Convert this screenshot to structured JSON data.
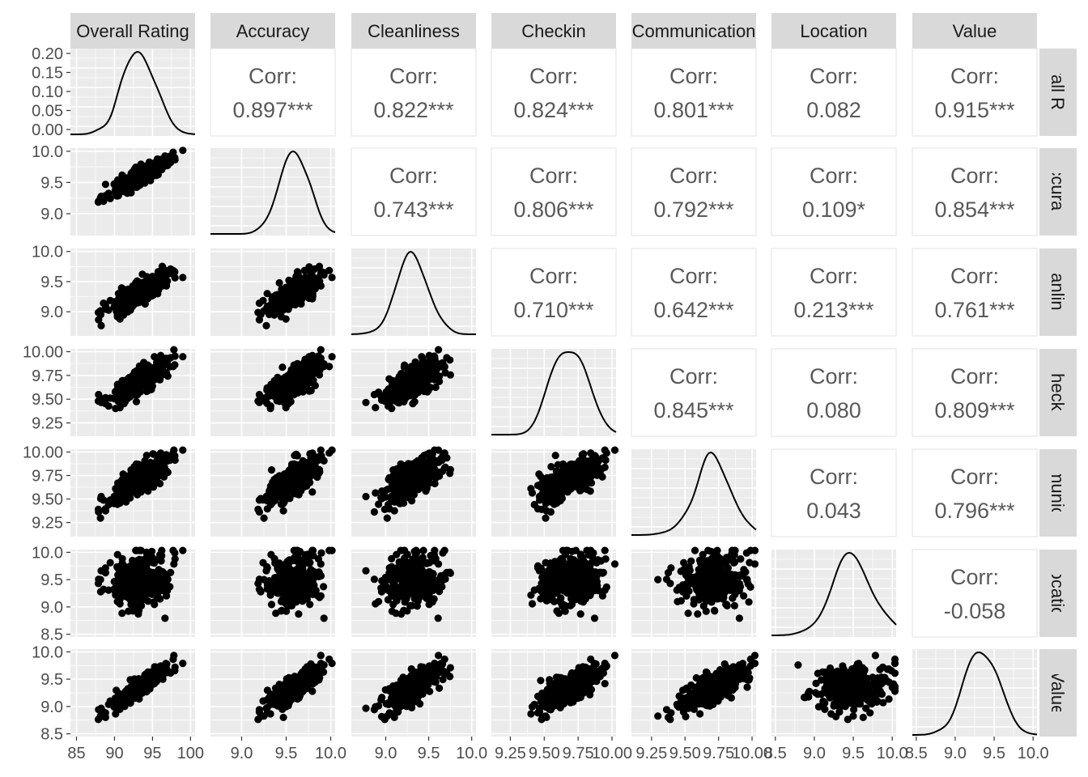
{
  "chart_data": {
    "type": "scatter",
    "variables": [
      "Overall Rating",
      "Accuracy",
      "Cleanliness",
      "Checkin",
      "Communication",
      "Location",
      "Value"
    ],
    "corr_label": "Corr:",
    "correlations": {
      "Accuracy|Overall Rating": "0.897***",
      "Cleanliness|Overall Rating": "0.822***",
      "Checkin|Overall Rating": "0.824***",
      "Communication|Overall Rating": "0.801***",
      "Location|Overall Rating": "0.082",
      "Value|Overall Rating": "0.915***",
      "Cleanliness|Accuracy": "0.743***",
      "Checkin|Accuracy": "0.806***",
      "Communication|Accuracy": "0.792***",
      "Location|Accuracy": "0.109*",
      "Value|Accuracy": "0.854***",
      "Checkin|Cleanliness": "0.710***",
      "Communication|Cleanliness": "0.642***",
      "Location|Cleanliness": "0.213***",
      "Value|Cleanliness": "0.761***",
      "Communication|Checkin": "0.845***",
      "Location|Checkin": "0.080",
      "Value|Checkin": "0.809***",
      "Location|Communication": "0.043",
      "Value|Communication": "0.796***",
      "Value|Location": "-0.058"
    },
    "axes": {
      "Overall Rating": {
        "range": [
          84.2,
          100.6
        ],
        "ticks": [
          "85",
          "90",
          "95",
          "100"
        ],
        "tick_values": [
          85,
          90,
          95,
          100
        ],
        "mean": 93.1,
        "sd": 2.0
      },
      "Accuracy": {
        "range": [
          8.65,
          10.05
        ],
        "ticks": [
          "9.0",
          "9.5",
          "10.0"
        ],
        "tick_values": [
          9.0,
          9.5,
          10.0
        ],
        "mean": 9.58,
        "sd": 0.16
      },
      "Cleanliness": {
        "range": [
          8.6,
          10.05
        ],
        "ticks": [
          "9.0",
          "9.5",
          "10.0"
        ],
        "tick_values": [
          9.0,
          9.5,
          10.0
        ],
        "mean": 9.3,
        "sd": 0.17
      },
      "Checkin": {
        "range": [
          9.11,
          10.03
        ],
        "ticks": [
          "9.25",
          "9.50",
          "9.75",
          "10.00"
        ],
        "tick_values": [
          9.25,
          9.5,
          9.75,
          10.0
        ],
        "mean": 9.68,
        "sd": 0.12
      },
      "Communication": {
        "range": [
          9.1,
          10.03
        ],
        "ticks": [
          "9.25",
          "9.50",
          "9.75",
          "10.00"
        ],
        "tick_values": [
          9.25,
          9.5,
          9.75,
          10.0
        ],
        "mean": 9.7,
        "sd": 0.12
      },
      "Location": {
        "range": [
          8.45,
          10.05
        ],
        "ticks": [
          "8.5",
          "9.0",
          "9.5",
          "10.0"
        ],
        "tick_values": [
          8.5,
          9.0,
          9.5,
          10.0
        ],
        "mean": 9.48,
        "sd": 0.25
      },
      "Value": {
        "range": [
          8.45,
          10.05
        ],
        "ticks": [
          "8.5",
          "9.0",
          "9.5",
          "10.0"
        ],
        "tick_values": [
          8.5,
          9.0,
          9.5,
          10.0
        ],
        "mean": 9.33,
        "sd": 0.2
      }
    },
    "points_per_scatter": 320,
    "point_color": "#000000",
    "panel_background": "#ebebeb",
    "strip_background": "#d9d9d9",
    "grid_color": "#ffffff",
    "legend": "none"
  }
}
